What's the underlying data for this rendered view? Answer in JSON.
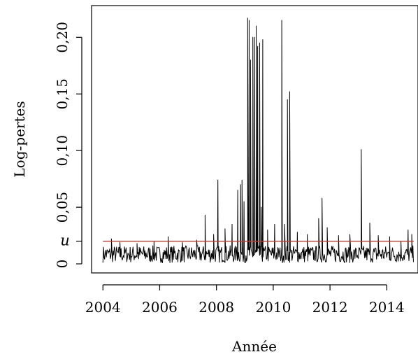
{
  "chart_data": {
    "type": "line",
    "xlabel": "Année",
    "ylabel": "Log-pertes",
    "xlim": [
      2003.6,
      2015.1
    ],
    "ylim": [
      -0.008,
      0.228
    ],
    "x_ticks": [
      {
        "value": 2004,
        "label": "2004"
      },
      {
        "value": 2006,
        "label": "2006"
      },
      {
        "value": 2008,
        "label": "2008"
      },
      {
        "value": 2010,
        "label": "2010"
      },
      {
        "value": 2012,
        "label": "2012"
      },
      {
        "value": 2014,
        "label": "2014"
      }
    ],
    "y_ticks": [
      {
        "value": 0,
        "label": "0"
      },
      {
        "value": 0.05,
        "label": "0,05"
      },
      {
        "value": 0.1,
        "label": "0,10"
      },
      {
        "value": 0.15,
        "label": "0,15"
      },
      {
        "value": 0.2,
        "label": "0,20"
      }
    ],
    "threshold": {
      "label": "u",
      "value": 0.02,
      "color": "#c0392b"
    },
    "grid": false,
    "series": [
      {
        "color": "#000000",
        "baseline_noise": {
          "x_start": 2004.0,
          "x_end": 2014.95,
          "step": 0.02,
          "min": 0.001,
          "max": 0.016
        },
        "peaks": [
          {
            "x": 2004.3,
            "y": 0.022
          },
          {
            "x": 2004.6,
            "y": 0.019
          },
          {
            "x": 2005.2,
            "y": 0.018
          },
          {
            "x": 2005.8,
            "y": 0.02
          },
          {
            "x": 2006.3,
            "y": 0.024
          },
          {
            "x": 2006.8,
            "y": 0.019
          },
          {
            "x": 2007.3,
            "y": 0.021
          },
          {
            "x": 2007.6,
            "y": 0.043
          },
          {
            "x": 2007.9,
            "y": 0.026
          },
          {
            "x": 2008.05,
            "y": 0.074
          },
          {
            "x": 2008.3,
            "y": 0.031
          },
          {
            "x": 2008.55,
            "y": 0.035
          },
          {
            "x": 2008.75,
            "y": 0.065
          },
          {
            "x": 2008.85,
            "y": 0.07
          },
          {
            "x": 2008.9,
            "y": 0.074
          },
          {
            "x": 2008.97,
            "y": 0.055
          },
          {
            "x": 2009.1,
            "y": 0.217
          },
          {
            "x": 2009.15,
            "y": 0.215
          },
          {
            "x": 2009.2,
            "y": 0.18
          },
          {
            "x": 2009.28,
            "y": 0.2
          },
          {
            "x": 2009.34,
            "y": 0.2
          },
          {
            "x": 2009.4,
            "y": 0.21
          },
          {
            "x": 2009.45,
            "y": 0.192
          },
          {
            "x": 2009.52,
            "y": 0.195
          },
          {
            "x": 2009.58,
            "y": 0.05
          },
          {
            "x": 2009.63,
            "y": 0.198
          },
          {
            "x": 2009.8,
            "y": 0.03
          },
          {
            "x": 2010.05,
            "y": 0.035
          },
          {
            "x": 2010.3,
            "y": 0.215
          },
          {
            "x": 2010.4,
            "y": 0.035
          },
          {
            "x": 2010.5,
            "y": 0.145
          },
          {
            "x": 2010.58,
            "y": 0.152
          },
          {
            "x": 2010.85,
            "y": 0.028
          },
          {
            "x": 2011.2,
            "y": 0.026
          },
          {
            "x": 2011.6,
            "y": 0.04
          },
          {
            "x": 2011.72,
            "y": 0.058
          },
          {
            "x": 2011.9,
            "y": 0.032
          },
          {
            "x": 2012.3,
            "y": 0.025
          },
          {
            "x": 2012.7,
            "y": 0.026
          },
          {
            "x": 2013.1,
            "y": 0.101
          },
          {
            "x": 2013.4,
            "y": 0.036
          },
          {
            "x": 2013.7,
            "y": 0.025
          },
          {
            "x": 2014.1,
            "y": 0.024
          },
          {
            "x": 2014.5,
            "y": 0.02
          },
          {
            "x": 2014.75,
            "y": 0.03
          },
          {
            "x": 2014.88,
            "y": 0.026
          }
        ]
      }
    ]
  }
}
